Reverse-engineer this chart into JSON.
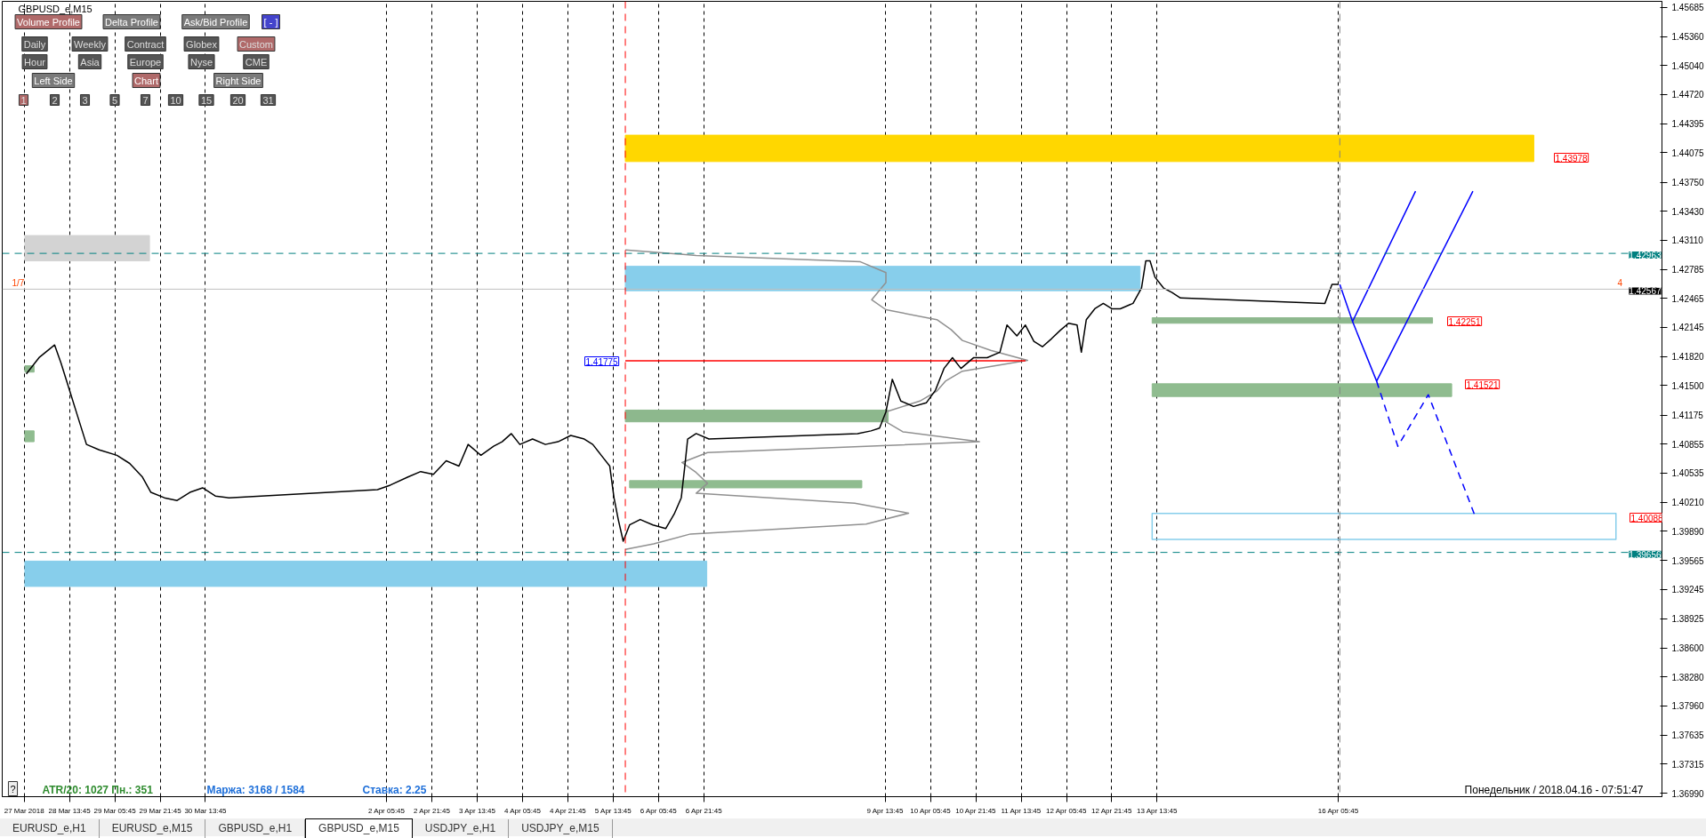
{
  "chart_data": {
    "type": "line",
    "title": "GBPUSD_e,M15",
    "xlim": [
      "2018-03-27T14:00",
      "2018-04-21T00:00"
    ],
    "ylim": [
      1.36955,
      1.4575
    ],
    "xticks": [
      {
        "value": "2018-03-27T21:45",
        "label": "27 Mar 2018"
      },
      {
        "value": "2018-03-28T13:45",
        "label": "28 Mar 13:45"
      },
      {
        "value": "2018-03-29T05:45",
        "label": "29 Mar 05:45"
      },
      {
        "value": "2018-03-29T21:45",
        "label": "29 Mar 21:45"
      },
      {
        "value": "2018-03-30T13:45",
        "label": "30 Mar 13:45"
      },
      {
        "value": "2018-04-02T05:45",
        "label": "2 Apr 05:45"
      },
      {
        "value": "2018-04-02T21:45",
        "label": "2 Apr 21:45"
      },
      {
        "value": "2018-04-03T13:45",
        "label": "3 Apr 13:45"
      },
      {
        "value": "2018-04-04T05:45",
        "label": "4 Apr 05:45"
      },
      {
        "value": "2018-04-04T21:45",
        "label": "4 Apr 21:45"
      },
      {
        "value": "2018-04-05T13:45",
        "label": "5 Apr 13:45"
      },
      {
        "value": "2018-04-06T05:45",
        "label": "6 Apr 05:45"
      },
      {
        "value": "2018-04-06T21:45",
        "label": "6 Apr 21:45"
      },
      {
        "value": "2018-04-09T13:45",
        "label": "9 Apr 13:45"
      },
      {
        "value": "2018-04-10T05:45",
        "label": "10 Apr 05:45"
      },
      {
        "value": "2018-04-10T21:45",
        "label": "10 Apr 21:45"
      },
      {
        "value": "2018-04-11T13:45",
        "label": "11 Apr 13:45"
      },
      {
        "value": "2018-04-12T05:45",
        "label": "12 Apr 05:45"
      },
      {
        "value": "2018-04-12T21:45",
        "label": "12 Apr 21:45"
      },
      {
        "value": "2018-04-13T13:45",
        "label": "13 Apr 13:45"
      },
      {
        "value": "2018-04-16T05:45",
        "label": "16 Apr 05:45"
      }
    ],
    "yticks": [
      {
        "value": 1.45685,
        "label": "1.45685"
      },
      {
        "value": 1.4536,
        "label": "1.45360"
      },
      {
        "value": 1.4504,
        "label": "1.45040"
      },
      {
        "value": 1.4472,
        "label": "1.44720"
      },
      {
        "value": 1.44395,
        "label": "1.44395"
      },
      {
        "value": 1.44075,
        "label": "1.44075"
      },
      {
        "value": 1.4375,
        "label": "1.43750"
      },
      {
        "value": 1.4343,
        "label": "1.43430"
      },
      {
        "value": 1.4311,
        "label": "1.43110"
      },
      {
        "value": 1.42785,
        "label": "1.42785"
      },
      {
        "value": 1.42465,
        "label": "1.42465"
      },
      {
        "value": 1.42145,
        "label": "1.42145"
      },
      {
        "value": 1.4182,
        "label": "1.41820"
      },
      {
        "value": 1.415,
        "label": "1.41500"
      },
      {
        "value": 1.41175,
        "label": "1.41175"
      },
      {
        "value": 1.40855,
        "label": "1.40855"
      },
      {
        "value": 1.40535,
        "label": "1.40535"
      },
      {
        "value": 1.4021,
        "label": "1.40210"
      },
      {
        "value": 1.3989,
        "label": "1.39890"
      },
      {
        "value": 1.39565,
        "label": "1.39565"
      },
      {
        "value": 1.39245,
        "label": "1.39245"
      },
      {
        "value": 1.38925,
        "label": "1.38925"
      },
      {
        "value": 1.386,
        "label": "1.38600"
      },
      {
        "value": 1.3828,
        "label": "1.38280"
      },
      {
        "value": 1.3796,
        "label": "1.37960"
      },
      {
        "value": 1.37635,
        "label": "1.37635"
      },
      {
        "value": 1.37315,
        "label": "1.37315"
      },
      {
        "value": 1.3699,
        "label": "1.36990"
      }
    ],
    "grid": "x",
    "marker": "none",
    "series": [
      {
        "type": "area",
        "color": "#ffd700",
        "x": [
          "2018-04-05T18:00",
          "2018-04-19T02:45",
          "2018-04-19T02:45",
          "2018-04-05T18:00",
          "2018-04-05T18:00"
        ],
        "values": [
          1.4427,
          1.4427,
          1.43978,
          1.43978,
          1.4427
        ]
      },
      {
        "type": "area",
        "color": "#d3d3d3",
        "x": [
          "2018-03-27T22:00",
          "2018-03-29T18:00",
          "2018-03-29T18:00",
          "2018-03-27T22:00",
          "2018-03-27T22:00"
        ],
        "values": [
          1.4316,
          1.4316,
          1.4288,
          1.4288,
          1.4316
        ]
      },
      {
        "type": "area",
        "color": "#87ceeb",
        "x": [
          "2018-03-27T22:00",
          "2018-04-06T22:45",
          "2018-04-06T22:45",
          "2018-03-27T22:00",
          "2018-03-27T22:00"
        ],
        "values": [
          1.3956,
          1.3956,
          1.3928,
          1.3928,
          1.3956
        ]
      },
      {
        "type": "line",
        "color": "#909090",
        "x": [
          "2018-04-05T18:00",
          "2018-04-06T19:00",
          "2018-04-09T05:00",
          "2018-04-09T14:00",
          "2018-04-09T14:00",
          "2018-04-09T09:00",
          "2018-04-09T14:00",
          "2018-04-10T08:00",
          "2018-04-10T13:00",
          "2018-04-10T17:00",
          "2018-04-11T03:00",
          "2018-04-11T16:00",
          "2018-04-10T17:00",
          "2018-04-10T11:00",
          "2018-04-10T08:00",
          "2018-04-10T02:00",
          "2018-04-09T14:00",
          "2018-04-09T14:00",
          "2018-04-09T20:00",
          "2018-04-10T23:00",
          "2018-04-06T23:00",
          "2018-04-06T14:00",
          "2018-04-06T19:00",
          "2018-04-06T23:00",
          "2018-04-06T19:00",
          "2018-04-09T03:00",
          "2018-04-09T22:00",
          "2018-04-09T07:00",
          "2018-04-06T17:00",
          "2018-04-06T04:00",
          "2018-04-05T18:00"
        ],
        "values": [
          1.43,
          1.4294,
          1.4287,
          1.4275,
          1.4264,
          1.4245,
          1.4234,
          1.4223,
          1.4212,
          1.42,
          1.4189,
          1.4178,
          1.4166,
          1.4155,
          1.4144,
          1.4133,
          1.4121,
          1.411,
          1.4099,
          1.4088,
          1.4076,
          1.4065,
          1.4054,
          1.4042,
          1.4031,
          1.402,
          1.4009,
          1.3997,
          1.3986,
          1.3975,
          1.3969
        ]
      },
      {
        "type": "area",
        "color": "#87ceeb",
        "x": [
          "2018-04-05T18:00",
          "2018-04-13T07:45",
          "2018-04-13T07:45",
          "2018-04-05T18:00",
          "2018-04-05T18:00"
        ],
        "values": [
          1.4282,
          1.4282,
          1.4255,
          1.4255,
          1.4282
        ]
      },
      {
        "type": "area",
        "color": "#8db88d",
        "x": [
          "2018-04-13T12:00",
          "2018-04-17T15:00",
          "2018-04-17T15:00",
          "2018-04-13T12:00",
          "2018-04-13T12:00"
        ],
        "values": [
          1.42251,
          1.42251,
          1.4219,
          1.4219,
          1.42251
        ]
      },
      {
        "type": "area",
        "color": "#8fbc8f",
        "x": [
          "2018-04-13T12:00",
          "2018-04-17T21:45",
          "2018-04-17T21:45",
          "2018-04-13T12:00",
          "2018-04-13T12:00"
        ],
        "values": [
          1.41521,
          1.41521,
          1.4138,
          1.4138,
          1.41521
        ]
      },
      {
        "type": "area",
        "color": "#8db88d",
        "x": [
          "2018-04-05T18:00",
          "2018-04-09T14:45",
          "2018-04-09T14:45",
          "2018-04-05T18:00",
          "2018-04-05T18:00"
        ],
        "values": [
          1.4123,
          1.4123,
          1.411,
          1.411,
          1.4123
        ]
      },
      {
        "type": "area",
        "color": "#8fbc8f",
        "x": [
          "2018-04-05T19:30",
          "2018-04-09T05:30",
          "2018-04-09T05:30",
          "2018-04-05T19:30",
          "2018-04-05T19:30"
        ],
        "values": [
          1.4045,
          1.4045,
          1.4037,
          1.4037,
          1.4045
        ]
      },
      {
        "type": "area",
        "color": "#8db88d",
        "x": [
          "2018-03-27T22:00",
          "2018-03-28T01:15",
          "2018-03-28T01:15",
          "2018-03-27T22:00",
          "2018-03-27T22:00"
        ],
        "values": [
          1.4172,
          1.4172,
          1.4165,
          1.4165,
          1.4172
        ]
      },
      {
        "type": "area",
        "color": "#8fbc8f",
        "x": [
          "2018-03-27T22:00",
          "2018-03-28T01:15",
          "2018-03-28T01:15",
          "2018-03-27T22:00",
          "2018-03-27T22:00"
        ],
        "values": [
          1.41,
          1.41,
          1.4088,
          1.4088,
          1.41
        ]
      },
      {
        "type": "line",
        "color": "#87ceeb",
        "x": [
          "2018-04-13T12:00",
          "2018-04-20T07:45",
          "2018-04-20T07:45",
          "2018-04-13T12:00",
          "2018-04-13T12:00",
          "2018-04-20T07:45"
        ],
        "values": [
          1.40088,
          1.40088,
          1.398,
          1.398,
          1.40088,
          1.40088
        ]
      },
      {
        "type": "line",
        "color": "#ff0000",
        "x": [
          "2018-04-05T18:00",
          "2018-04-11T15:15"
        ],
        "values": [
          1.41775,
          1.41775
        ]
      },
      {
        "color": "#000000",
        "x": [
          "2018-03-27T22:30",
          "2018-03-28T03:00",
          "2018-03-28T08:30",
          "2018-03-28T10:45",
          "2018-03-28T13:45",
          "2018-03-28T16:45",
          "2018-03-28T19:45",
          "2018-03-29T00:15",
          "2018-03-29T06:30",
          "2018-03-29T11:00",
          "2018-03-29T15:30",
          "2018-03-29T18:30",
          "2018-03-29T23:15",
          "2018-03-30T03:45",
          "2018-03-30T08:15",
          "2018-03-30T12:45",
          "2018-03-30T17:15",
          "2018-03-30T22:00",
          "2018-04-02T02:30",
          "2018-04-02T07:00",
          "2018-04-02T13:15",
          "2018-04-02T17:45",
          "2018-04-02T22:15",
          "2018-04-03T02:45",
          "2018-04-03T07:15",
          "2018-04-03T10:30",
          "2018-04-03T15:00",
          "2018-04-03T19:30",
          "2018-04-03T22:30",
          "2018-04-04T01:45",
          "2018-04-04T04:45",
          "2018-04-04T09:15",
          "2018-04-04T13:45",
          "2018-04-04T18:15",
          "2018-04-04T22:45",
          "2018-04-05T03:30",
          "2018-04-05T06:30",
          "2018-04-05T09:30",
          "2018-04-05T12:30",
          "2018-04-05T14:00",
          "2018-04-05T15:30",
          "2018-04-05T17:15",
          "2018-04-05T19:30",
          "2018-04-05T23:15",
          "2018-04-06T03:45",
          "2018-04-06T08:15",
          "2018-04-06T11:15",
          "2018-04-06T13:45",
          "2018-04-06T15:00",
          "2018-04-06T16:00",
          "2018-04-06T19:00",
          "2018-04-06T23:30",
          "2018-04-09T04:00",
          "2018-04-09T08:45",
          "2018-04-09T11:45",
          "2018-04-09T14:00",
          "2018-04-09T16:15",
          "2018-04-09T19:15",
          "2018-04-09T23:45",
          "2018-04-10T04:15",
          "2018-04-10T07:30",
          "2018-04-10T10:30",
          "2018-04-10T13:30",
          "2018-04-10T16:30",
          "2018-04-10T21:00",
          "2018-04-11T01:45",
          "2018-04-11T06:15",
          "2018-04-11T08:45",
          "2018-04-11T12:15",
          "2018-04-11T15:15",
          "2018-04-11T18:15",
          "2018-04-11T21:15",
          "2018-04-12T00:30",
          "2018-04-12T03:30",
          "2018-04-12T06:30",
          "2018-04-12T09:30",
          "2018-04-12T11:00",
          "2018-04-12T12:45",
          "2018-04-12T15:45",
          "2018-04-12T18:45",
          "2018-04-12T21:45",
          "2018-04-13T00:45",
          "2018-04-13T05:15",
          "2018-04-13T08:15",
          "2018-04-13T09:45",
          "2018-04-13T11:15",
          "2018-04-13T13:00",
          "2018-04-13T16:00",
          "2018-04-13T19:00",
          "2018-04-13T22:00",
          "2018-04-16T01:00",
          "2018-04-16T03:30",
          "2018-04-16T05:45"
        ],
        "values": [
          1.4163,
          1.4181,
          1.4195,
          1.4175,
          1.4145,
          1.4115,
          1.4085,
          1.4079,
          1.4073,
          1.4064,
          1.4049,
          1.4032,
          1.4026,
          1.4023,
          1.4032,
          1.4037,
          1.4028,
          1.4026,
          1.4035,
          1.404,
          1.4049,
          1.4055,
          1.4052,
          1.4067,
          1.4061,
          1.4085,
          1.4073,
          1.4083,
          1.4088,
          1.4097,
          1.4085,
          1.4091,
          1.4085,
          1.4088,
          1.4095,
          1.4091,
          1.4085,
          1.4073,
          1.4061,
          1.4026,
          1.4002,
          1.3978,
          1.3996,
          1.4002,
          1.3996,
          1.3992,
          1.4008,
          1.4026,
          1.4061,
          1.4091,
          1.4097,
          1.4091,
          1.4097,
          1.41,
          1.4103,
          1.4121,
          1.4157,
          1.4133,
          1.4127,
          1.4131,
          1.4145,
          1.4169,
          1.4181,
          1.4169,
          1.4181,
          1.4181,
          1.4187,
          1.4217,
          1.4205,
          1.4217,
          1.4199,
          1.4193,
          1.4202,
          1.4211,
          1.4219,
          1.4217,
          1.4187,
          1.4223,
          1.4235,
          1.4241,
          1.4235,
          1.4235,
          1.4241,
          1.4258,
          1.4288,
          1.4288,
          1.427,
          1.4258,
          1.4253,
          1.4247,
          1.4241,
          1.4262,
          1.4262
        ]
      },
      {
        "type": "line",
        "color": "#0000ff",
        "x": [
          "2018-04-16T06:15",
          "2018-04-16T10:45",
          "2018-04-17T09:00"
        ],
        "values": [
          1.4262,
          1.4221,
          1.4365
        ]
      },
      {
        "type": "line",
        "color": "#0000ff",
        "x": [
          "2018-04-16T10:45",
          "2018-04-16T19:15",
          "2018-04-18T05:15"
        ],
        "values": [
          1.4221,
          1.4155,
          1.4365
        ]
      },
      {
        "type": "line",
        "color": "#0000ff",
        "line_style": "dashed",
        "x": [
          "2018-04-16T19:15",
          "2018-04-17T02:45",
          "2018-04-17T13:30",
          "2018-04-18T05:45"
        ],
        "values": [
          1.4155,
          1.4083,
          1.414,
          1.4008
        ]
      }
    ],
    "ref_lines": [
      {
        "axis": "y",
        "value": 1.42963,
        "label": "1.42963",
        "color": "#008080",
        "line_style": "dashed"
      },
      {
        "axis": "y",
        "value": 1.39656,
        "label": "1.39656",
        "color": "#008080",
        "line_style": "dashed"
      },
      {
        "axis": "y",
        "value": 1.42567,
        "label": "1.42567",
        "color": "#c0c0c0",
        "line_style": "solid"
      },
      {
        "axis": "x",
        "value": "2018-04-05T18:00",
        "label": null,
        "color": "#ff0000",
        "line_style": "dashed"
      },
      {
        "axis": "x",
        "value": "2018-04-16T06:15",
        "label": null,
        "color": "#808080",
        "line_style": "dashed"
      }
    ],
    "annotations": [
      "Volume Profile",
      "Delta Profile",
      "Ask/Bid Profile",
      "[ - ]",
      "Daily",
      "Weekly",
      "Contract",
      "Globex",
      "Custom",
      "Hour",
      "Asia",
      "Europe",
      "Nyse",
      "CME",
      "Left Side",
      "Chart",
      "Right Side",
      "1",
      "2",
      "3",
      "5",
      "7",
      "10",
      "15",
      "20",
      "31",
      "?",
      "ATR/20: 1027  Пн.: 351",
      "Маржа: 3168 / 1584",
      "Ставка: 2.25",
      "Понедельник / 2018.04.16 - 07:51:47",
      "1.43978",
      "1.42251",
      "1.41521",
      "1.40088",
      "1.41775",
      "1/7",
      "4",
      "EURUSD_e,H1",
      "EURUSD_e,M15",
      "GBPUSD_e,H1",
      "GBPUSD_e,M15",
      "USDJPY_e,H1",
      "USDJPY_e,M15"
    ]
  }
}
